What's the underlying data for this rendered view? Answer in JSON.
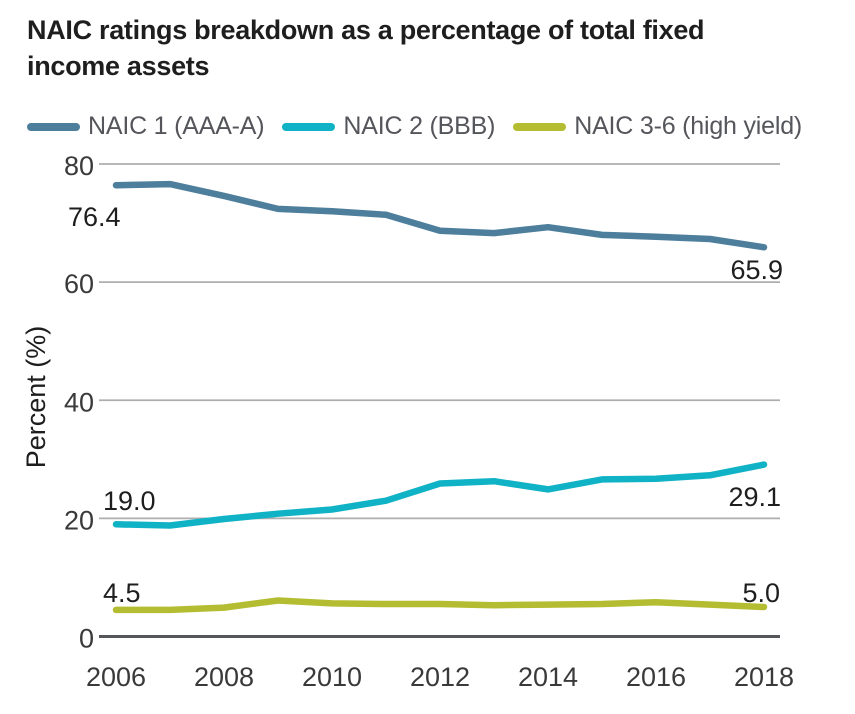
{
  "title": "NAIC ratings breakdown as a percentage of total fixed income assets",
  "legend": [
    {
      "label": "NAIC 1 (AAA-A)",
      "color": "#4d7e9c",
      "icon": "line-swatch-icon"
    },
    {
      "label": "NAIC 2 (BBB)",
      "color": "#10b2c5",
      "icon": "line-swatch-icon"
    },
    {
      "label": "NAIC 3-6 (high yield)",
      "color": "#b4bd31",
      "icon": "line-swatch-icon"
    }
  ],
  "colors": {
    "gridline": "#aeaeae",
    "zero_line": "#54565a",
    "tick_label": "#3a3a3a",
    "text": "#1e1e1e"
  },
  "chart_data": {
    "type": "line",
    "title": "NAIC ratings breakdown as a percentage of total fixed income assets",
    "xlabel": "",
    "ylabel": "Percent (%)",
    "x": [
      2006,
      2007,
      2008,
      2009,
      2010,
      2011,
      2012,
      2013,
      2014,
      2015,
      2016,
      2017,
      2018
    ],
    "x_tick_labels": [
      "2006",
      "2008",
      "2010",
      "2012",
      "2014",
      "2016",
      "2018"
    ],
    "y_ticks": [
      0,
      20,
      40,
      60,
      80
    ],
    "ylim": [
      0,
      84
    ],
    "grid": "horizontal",
    "legend_position": "top",
    "series": [
      {
        "name": "NAIC 1 (AAA-A)",
        "color": "#4d7e9c",
        "values": [
          76.4,
          76.6,
          74.6,
          72.4,
          72.0,
          71.4,
          68.7,
          68.3,
          69.3,
          68.0,
          67.7,
          67.3,
          65.9
        ],
        "first_label": "76.4",
        "last_label": "65.9"
      },
      {
        "name": "NAIC 2 (BBB)",
        "color": "#10b2c5",
        "values": [
          19.0,
          18.8,
          19.9,
          20.8,
          21.5,
          23.0,
          25.9,
          26.3,
          24.9,
          26.6,
          26.7,
          27.3,
          29.1
        ],
        "first_label": "19.0",
        "last_label": "29.1"
      },
      {
        "name": "NAIC 3-6 (high yield)",
        "color": "#b4bd31",
        "values": [
          4.5,
          4.5,
          4.9,
          6.1,
          5.6,
          5.5,
          5.5,
          5.3,
          5.4,
          5.5,
          5.8,
          5.4,
          5.0
        ],
        "first_label": "4.5",
        "last_label": "5.0"
      }
    ]
  }
}
